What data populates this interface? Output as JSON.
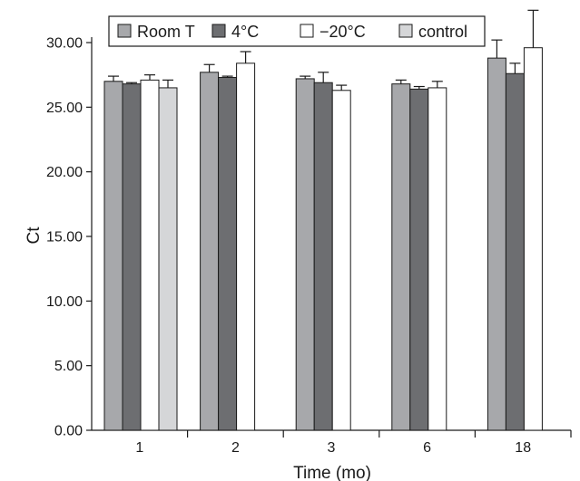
{
  "chart_data": {
    "type": "bar",
    "xlabel": "Time (mo)",
    "ylabel": "Ct",
    "ylim": [
      0,
      30
    ],
    "yticks": [
      0,
      5,
      10,
      15,
      20,
      25,
      30
    ],
    "ytick_labels": [
      "0.00",
      "5.00",
      "10.00",
      "15.00",
      "20.00",
      "25.00",
      "30.00"
    ],
    "categories": [
      "1",
      "2",
      "3",
      "6",
      "18"
    ],
    "legend_position": "top",
    "series": [
      {
        "name": "Room T",
        "color": "#a7a8ab",
        "values": [
          27.0,
          27.7,
          27.2,
          26.8,
          28.8
        ],
        "errors": [
          0.4,
          0.6,
          0.2,
          0.3,
          1.4
        ]
      },
      {
        "name": "4°C",
        "color": "#6d6e71",
        "values": [
          26.8,
          27.3,
          26.9,
          26.4,
          27.6
        ],
        "errors": [
          0.1,
          0.1,
          0.8,
          0.2,
          0.8
        ]
      },
      {
        "name": "−20°C",
        "color": "#ffffff",
        "values": [
          27.1,
          28.4,
          26.3,
          26.5,
          29.6
        ],
        "errors": [
          0.4,
          0.9,
          0.4,
          0.5,
          2.9
        ]
      },
      {
        "name": "control",
        "color": "#d5d6d8",
        "values": [
          26.5,
          null,
          null,
          null,
          null
        ],
        "errors": [
          0.6,
          null,
          null,
          null,
          null
        ]
      }
    ]
  }
}
